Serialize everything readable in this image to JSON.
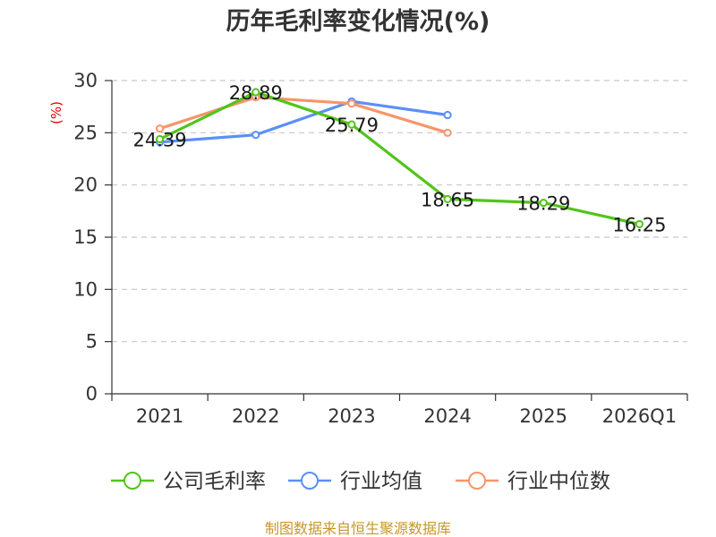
{
  "chart_data": {
    "type": "line",
    "title": "历年毛利率变化情况(%)",
    "ylabel": "(%)",
    "xlabel": "",
    "categories": [
      "2021",
      "2022",
      "2023",
      "2024",
      "2025",
      "2026Q1"
    ],
    "ylim": [
      0,
      30
    ],
    "yticks": [
      0,
      5,
      10,
      15,
      20,
      25,
      30
    ],
    "grid": true,
    "legend_position": "bottom",
    "series": [
      {
        "name": "公司毛利率",
        "color": "#52c41a",
        "values": [
          24.39,
          28.89,
          25.79,
          18.65,
          18.29,
          16.25
        ],
        "labels": [
          "24.39",
          "28.89",
          "25.79",
          "18.65",
          "18.29",
          "16.25"
        ]
      },
      {
        "name": "行业均值",
        "color": "#5b8ff9",
        "values": [
          24.1,
          24.8,
          28.0,
          26.7,
          null,
          null
        ]
      },
      {
        "name": "行业中位数",
        "color": "#f6956a",
        "values": [
          25.4,
          28.4,
          27.8,
          25.0,
          null,
          null
        ]
      }
    ],
    "source": "制图数据来自恒生聚源数据库"
  }
}
